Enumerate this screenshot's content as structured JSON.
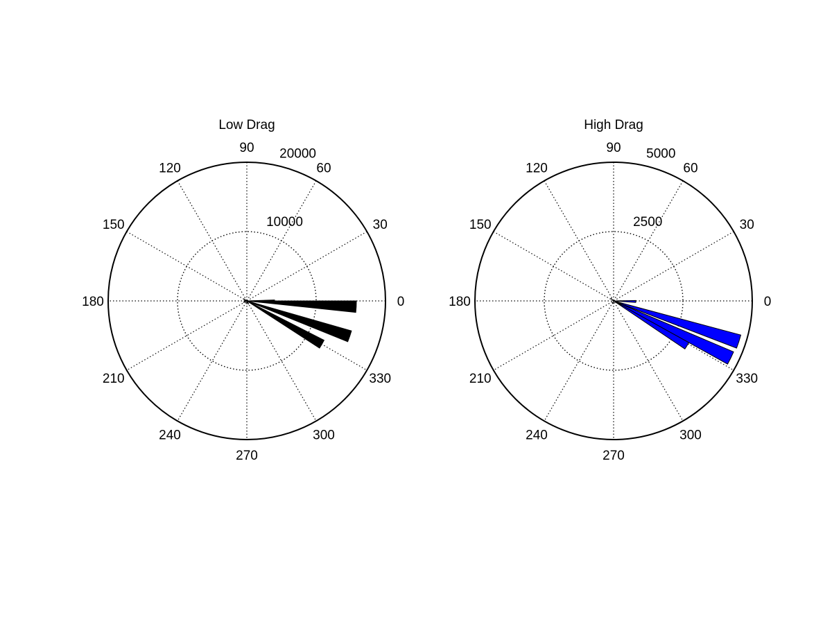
{
  "chart_data": [
    {
      "type": "polar-bar",
      "title": "Low Drag",
      "angle_ticks": [
        "0",
        "30",
        "60",
        "90",
        "120",
        "150",
        "180",
        "210",
        "240",
        "270",
        "300",
        "330"
      ],
      "radial_ticks": [
        {
          "value": 10000,
          "label": "10000"
        },
        {
          "value": 20000,
          "label": "20000"
        }
      ],
      "rmax": 20000,
      "color": "#000000",
      "bins": [
        {
          "start_deg": 354,
          "end_deg": 360,
          "value": 15800
        },
        {
          "start_deg": 338,
          "end_deg": 344,
          "value": 15700
        },
        {
          "start_deg": 327,
          "end_deg": 333,
          "value": 12500
        },
        {
          "start_deg": 355,
          "end_deg": 362,
          "value": 4000
        },
        {
          "start_deg": 144,
          "end_deg": 150,
          "value": 500
        },
        {
          "start_deg": 200,
          "end_deg": 205,
          "value": 500
        },
        {
          "start_deg": 295,
          "end_deg": 300,
          "value": 500
        },
        {
          "start_deg": 265,
          "end_deg": 270,
          "value": 400
        },
        {
          "start_deg": 170,
          "end_deg": 175,
          "value": 400
        }
      ]
    },
    {
      "type": "polar-bar",
      "title": "High Drag",
      "angle_ticks": [
        "0",
        "30",
        "60",
        "90",
        "120",
        "150",
        "180",
        "210",
        "240",
        "270",
        "300",
        "330"
      ],
      "radial_ticks": [
        {
          "value": 2500,
          "label": "2500"
        },
        {
          "value": 5000,
          "label": "5000"
        }
      ],
      "rmax": 5000,
      "color": "#0000ff",
      "bins": [
        {
          "start_deg": 339,
          "end_deg": 345,
          "value": 4750
        },
        {
          "start_deg": 331,
          "end_deg": 337,
          "value": 4700
        },
        {
          "start_deg": 326,
          "end_deg": 331,
          "value": 3100
        },
        {
          "start_deg": 356,
          "end_deg": 361,
          "value": 800
        },
        {
          "start_deg": 135,
          "end_deg": 140,
          "value": 130
        },
        {
          "start_deg": 250,
          "end_deg": 256,
          "value": 100
        }
      ]
    }
  ]
}
